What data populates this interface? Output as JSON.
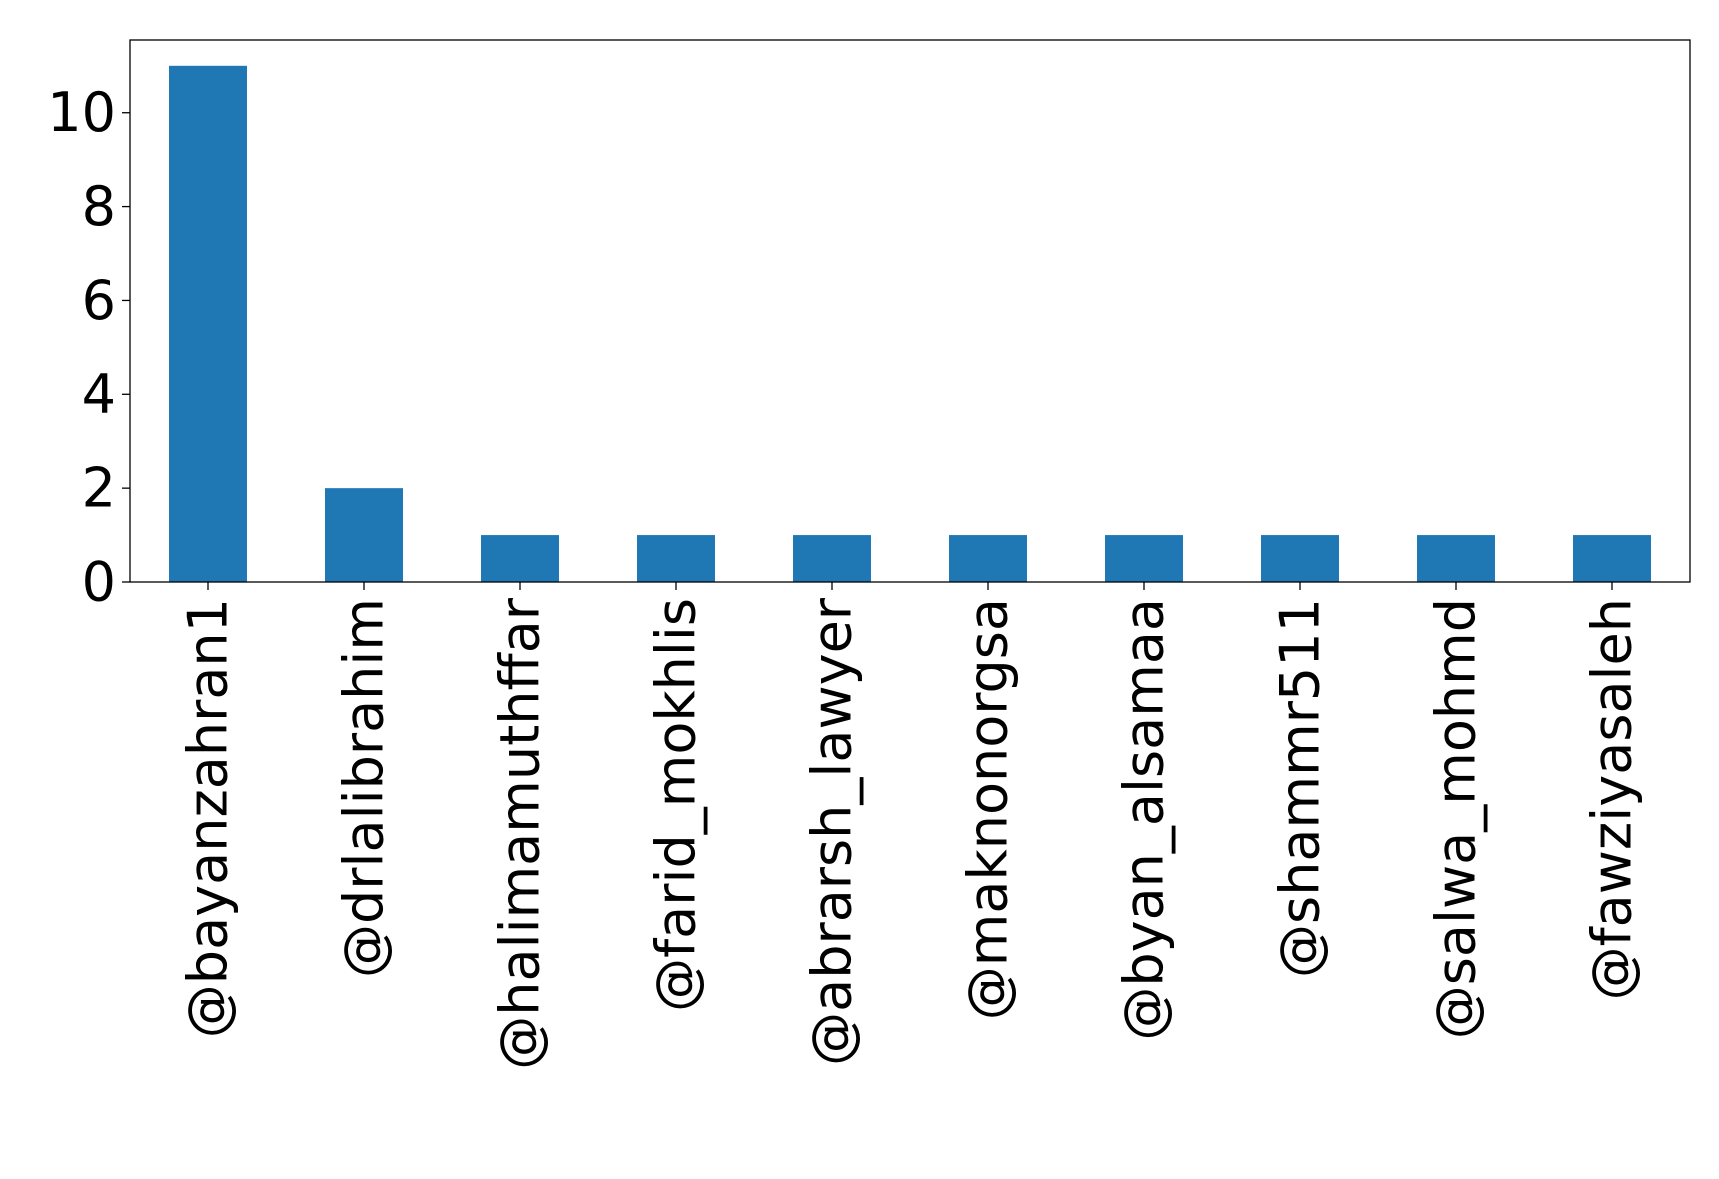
{
  "chart_data": {
    "type": "bar",
    "title": "",
    "xlabel": "",
    "ylabel": "",
    "categories": [
      "@bayanzahran1",
      "@drlalibrahim",
      "@halimamuthffar",
      "@farid_mokhlis",
      "@abrarsh_lawyer",
      "@maknonorgsa",
      "@byan_alsamaa",
      "@shammr511",
      "@salwa_mohmd",
      "@fawziyasaleh"
    ],
    "values": [
      11,
      2,
      1,
      1,
      1,
      1,
      1,
      1,
      1,
      1
    ],
    "ylim": [
      0,
      11.55
    ],
    "yticks": [
      0,
      2,
      4,
      6,
      8,
      10
    ],
    "grid": false,
    "legend": "none",
    "bar_color": "#1f77b4"
  }
}
